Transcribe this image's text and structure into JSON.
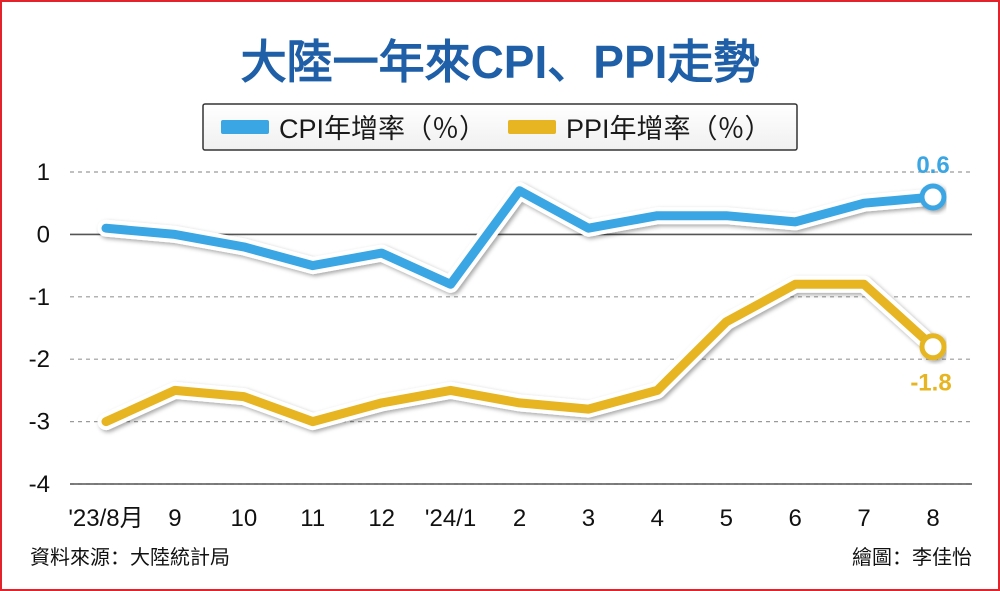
{
  "chart_data": {
    "type": "line",
    "title": "大陸一年來CPI、PPI走勢",
    "categories": [
      "'23/8月",
      "9",
      "10",
      "11",
      "12",
      "'24/1",
      "2",
      "3",
      "4",
      "5",
      "6",
      "7",
      "8"
    ],
    "series": [
      {
        "name": "CPI年增率（％）",
        "color": "#3aa6e3",
        "values": [
          0.1,
          0.0,
          -0.2,
          -0.5,
          -0.3,
          -0.8,
          0.7,
          0.1,
          0.3,
          0.3,
          0.2,
          0.5,
          0.6
        ],
        "end_label": "0.6"
      },
      {
        "name": "PPI年增率（％）",
        "color": "#e6b521",
        "values": [
          -3.0,
          -2.5,
          -2.6,
          -3.0,
          -2.7,
          -2.5,
          -2.7,
          -2.8,
          -2.5,
          -1.4,
          -0.8,
          -0.8,
          -1.8
        ],
        "end_label": "-1.8"
      }
    ],
    "ylim": [
      -4,
      1
    ],
    "y_ticks": [
      "1",
      "0",
      "-1",
      "-2",
      "-3",
      "-4"
    ],
    "legend_position": "top-center",
    "grid": "dashed horizontal"
  },
  "footer": {
    "source": "資料來源：大陸統計局",
    "credit": "繪圖：李佳怡"
  },
  "colors": {
    "border": "#e2232b",
    "title": "#1e5fa8"
  }
}
